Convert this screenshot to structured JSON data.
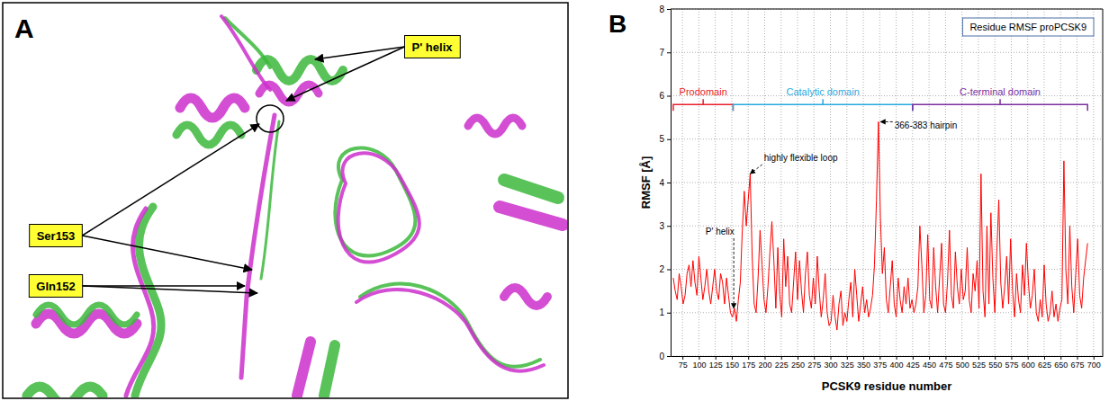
{
  "panel_a": {
    "panel_label": "A",
    "labels": {
      "p_helix": "P' helix",
      "ser153": "Ser153",
      "gln152": "Gln152"
    }
  },
  "chart_data": {
    "type": "line",
    "panel_label": "B",
    "x_label": "PCSK9 residue number",
    "y_label": "RMSF [Å]",
    "xlim": [
      57,
      714
    ],
    "xticks": [
      75,
      100,
      125,
      150,
      175,
      200,
      225,
      250,
      275,
      300,
      325,
      350,
      375,
      400,
      425,
      450,
      475,
      500,
      525,
      550,
      575,
      600,
      625,
      650,
      675,
      700
    ],
    "ylim": [
      0,
      8
    ],
    "yticks": [
      0,
      1,
      2,
      3,
      4,
      5,
      6,
      7,
      8
    ],
    "grid": true,
    "legend": "upper right",
    "x": [
      61,
      64,
      67,
      70,
      73,
      76,
      79,
      82,
      85,
      88,
      91,
      94,
      97,
      100,
      103,
      106,
      109,
      112,
      115,
      118,
      121,
      124,
      127,
      130,
      133,
      136,
      139,
      142,
      145,
      148,
      151,
      154,
      157,
      160,
      163,
      166,
      169,
      172,
      175,
      178,
      181,
      184,
      187,
      190,
      193,
      196,
      199,
      202,
      205,
      208,
      211,
      214,
      217,
      220,
      223,
      226,
      229,
      232,
      235,
      238,
      241,
      244,
      247,
      250,
      253,
      256,
      259,
      262,
      265,
      268,
      271,
      274,
      277,
      280,
      283,
      286,
      289,
      292,
      295,
      298,
      301,
      304,
      307,
      310,
      313,
      316,
      319,
      322,
      325,
      328,
      331,
      334,
      337,
      340,
      343,
      346,
      349,
      352,
      355,
      358,
      361,
      364,
      367,
      370,
      373,
      376,
      379,
      382,
      385,
      388,
      391,
      394,
      397,
      400,
      403,
      406,
      409,
      412,
      415,
      418,
      421,
      424,
      427,
      430,
      433,
      436,
      439,
      442,
      445,
      448,
      451,
      454,
      457,
      460,
      463,
      466,
      469,
      472,
      475,
      478,
      481,
      484,
      487,
      490,
      493,
      496,
      499,
      502,
      505,
      508,
      511,
      514,
      517,
      520,
      523,
      526,
      529,
      532,
      535,
      538,
      541,
      544,
      547,
      550,
      553,
      556,
      559,
      562,
      565,
      568,
      571,
      574,
      577,
      580,
      583,
      586,
      589,
      592,
      595,
      598,
      601,
      604,
      607,
      610,
      613,
      616,
      619,
      622,
      625,
      628,
      631,
      634,
      637,
      640,
      643,
      646,
      649,
      652,
      655,
      658,
      661,
      664,
      667,
      670,
      673,
      676,
      679,
      682,
      685,
      688,
      691
    ],
    "series": [
      {
        "name": "Residue RMSF proPCSK9",
        "color": "#ff0000",
        "values": [
          1.8,
          1.5,
          1.3,
          1.9,
          1.6,
          1.2,
          1.4,
          1.9,
          2.1,
          1.6,
          2.2,
          1.7,
          1.4,
          2.3,
          1.8,
          1.3,
          1.6,
          2.0,
          1.5,
          1.2,
          1.6,
          2.0,
          1.5,
          1.3,
          1.9,
          1.7,
          1.2,
          1.8,
          1.4,
          1.0,
          0.9,
          1.1,
          0.8,
          1.3,
          1.7,
          2.9,
          3.8,
          3.0,
          3.6,
          4.2,
          2.3,
          1.2,
          1.0,
          1.8,
          2.9,
          2.1,
          1.3,
          1.0,
          1.6,
          2.4,
          3.1,
          2.2,
          1.1,
          2.5,
          1.4,
          0.9,
          2.7,
          1.6,
          2.3,
          1.2,
          1.0,
          1.7,
          2.4,
          1.3,
          2.2,
          1.5,
          1.0,
          1.9,
          2.4,
          1.4,
          1.1,
          1.8,
          1.2,
          2.3,
          1.5,
          0.9,
          1.3,
          1.9,
          1.0,
          0.7,
          0.8,
          1.4,
          0.9,
          0.6,
          1.2,
          1.5,
          0.7,
          1.0,
          0.8,
          1.3,
          1.7,
          0.9,
          2.0,
          1.4,
          0.8,
          1.2,
          1.6,
          1.0,
          1.3,
          0.9,
          1.1,
          1.4,
          2.1,
          3.6,
          5.4,
          3.2,
          1.9,
          2.5,
          1.3,
          1.0,
          1.6,
          2.2,
          1.2,
          0.9,
          1.8,
          1.3,
          1.0,
          1.6,
          1.2,
          1.8,
          1.1,
          1.3,
          1.0,
          1.2,
          1.6,
          3.0,
          2.1,
          1.0,
          1.4,
          2.8,
          1.3,
          1.1,
          2.5,
          1.6,
          1.0,
          1.8,
          2.6,
          1.2,
          1.0,
          1.7,
          2.9,
          1.4,
          1.1,
          2.4,
          1.6,
          1.2,
          2.0,
          1.3,
          1.5,
          2.5,
          1.3,
          1.0,
          1.9,
          1.5,
          2.2,
          1.1,
          4.2,
          1.5,
          0.9,
          3.0,
          1.2,
          3.3,
          1.8,
          1.0,
          2.4,
          3.6,
          1.7,
          1.1,
          1.6,
          2.3,
          1.2,
          2.7,
          1.5,
          0.9,
          1.9,
          1.3,
          1.0,
          2.1,
          1.4,
          2.6,
          1.7,
          1.1,
          1.4,
          2.0,
          1.0,
          0.8,
          1.3,
          0.9,
          2.1,
          1.2,
          0.8,
          1.0,
          1.5,
          0.9,
          1.2,
          0.8,
          1.1,
          1.3,
          4.5,
          2.0,
          1.2,
          3.0,
          1.6,
          1.0,
          1.9,
          2.7,
          1.4,
          1.1,
          1.8,
          2.2,
          2.6
        ]
      }
    ],
    "domains": [
      {
        "text": "Prodomain",
        "color": "#e8202a",
        "start": 61,
        "end": 152,
        "y": 5.8
      },
      {
        "text": "Catalytic domain",
        "color": "#29a9e0",
        "start": 152,
        "end": 425,
        "y": 5.8
      },
      {
        "text": "C-terminal domain",
        "color": "#7b2f9e",
        "start": 425,
        "end": 691,
        "y": 5.8
      }
    ],
    "annotations": [
      {
        "text": "P' helix",
        "xy": [
          153,
          1.1
        ],
        "xytext": [
          132,
          2.8
        ]
      },
      {
        "text": "highly flexible loop",
        "xy": [
          178,
          4.2
        ],
        "xytext": [
          255,
          4.5
        ]
      },
      {
        "text": "366-383 hairpin",
        "xy": [
          376,
          5.4
        ],
        "xytext": [
          445,
          5.25
        ]
      }
    ]
  }
}
